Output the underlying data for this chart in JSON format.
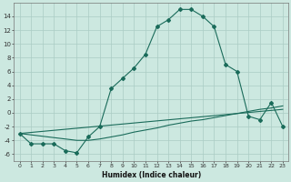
{
  "title": "",
  "xlabel": "Humidex (Indice chaleur)",
  "bg_color": "#cce8e0",
  "grid_color": "#aaccC4",
  "line_color": "#1a6b5a",
  "x_ticks": [
    0,
    1,
    2,
    3,
    4,
    5,
    6,
    7,
    8,
    9,
    10,
    11,
    12,
    13,
    14,
    15,
    16,
    17,
    18,
    19,
    20,
    21,
    22,
    23
  ],
  "y_ticks": [
    -6,
    -4,
    -2,
    0,
    2,
    4,
    6,
    8,
    10,
    12,
    14
  ],
  "ylim": [
    -7,
    16
  ],
  "xlim": [
    -0.5,
    23.5
  ],
  "main_curve_x": [
    0,
    1,
    2,
    3,
    4,
    5,
    6,
    7,
    8,
    9,
    10,
    11,
    12,
    13,
    14,
    15,
    16,
    17,
    18,
    19,
    20,
    21,
    22,
    23
  ],
  "main_curve_y": [
    -3,
    -4.5,
    -4.5,
    -4.5,
    -5.5,
    -5.8,
    -3.5,
    -2.0,
    3.5,
    5.0,
    6.5,
    8.5,
    12.5,
    13.5,
    15.0,
    15.0,
    14.0,
    12.5,
    7.0,
    6.0,
    -0.5,
    -1.0,
    1.5,
    -2.0
  ],
  "line2_x": [
    0,
    1,
    2,
    3,
    4,
    5,
    6,
    7,
    8,
    9,
    10,
    11,
    12,
    13,
    14,
    15,
    16,
    17,
    18,
    19,
    20,
    21,
    22,
    23
  ],
  "line2_y": [
    -3.0,
    -3.2,
    -3.4,
    -3.6,
    -3.8,
    -4.0,
    -4.0,
    -3.8,
    -3.5,
    -3.2,
    -2.8,
    -2.5,
    -2.2,
    -1.8,
    -1.5,
    -1.2,
    -1.0,
    -0.7,
    -0.4,
    -0.1,
    0.2,
    0.5,
    0.7,
    1.0
  ],
  "line3_x": [
    0,
    23
  ],
  "line3_y": [
    -3.0,
    0.5
  ]
}
